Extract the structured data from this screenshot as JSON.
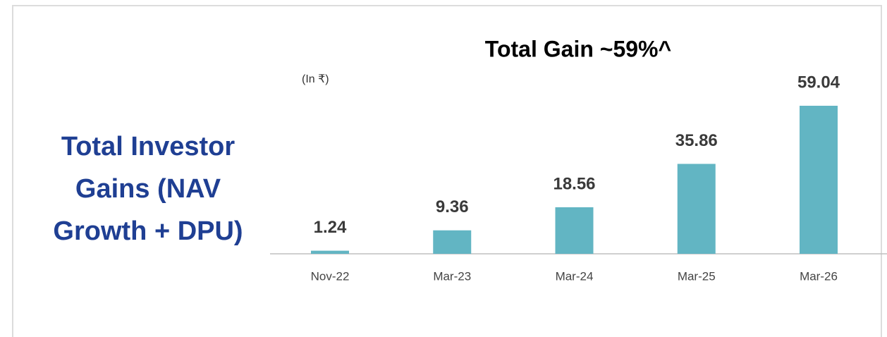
{
  "heading": "Total Investor Gains (NAV Growth + DPU)",
  "chart_data": {
    "type": "bar",
    "title": "Total Gain ~59%^",
    "unit_label": "(In ₹)",
    "categories": [
      "Nov-22",
      "Mar-23",
      "Mar-24",
      "Mar-25",
      "Mar-26"
    ],
    "values": [
      1.24,
      9.36,
      18.56,
      35.86,
      59.04
    ],
    "color": "#62b5c3"
  }
}
